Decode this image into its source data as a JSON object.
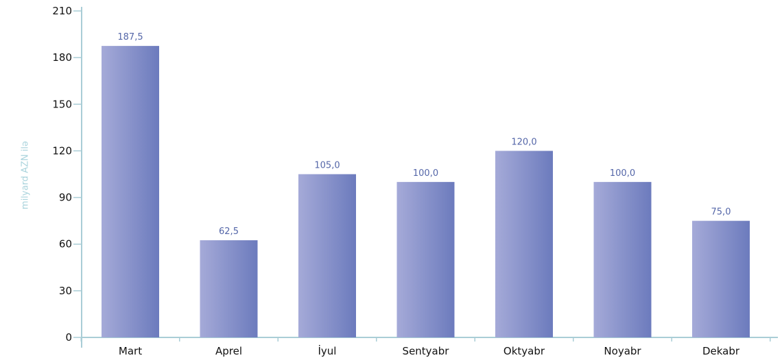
{
  "colors": {
    "axis": "#a9cdd6",
    "bar_light": "#a5aad8",
    "bar_dark": "#6c7bbd",
    "value_label": "#5466a8",
    "tick_text": "#111111",
    "ylabel_text": "#a9d3dc"
  },
  "chart_data": {
    "type": "bar",
    "title": "",
    "xlabel": "",
    "ylabel": "milyard AZN ilə",
    "categories": [
      "Mart",
      "Aprel",
      "İyul",
      "Sentyabr",
      "Oktyabr",
      "Noyabr",
      "Dekabr"
    ],
    "values": [
      187.5,
      62.5,
      105.0,
      100.0,
      120.0,
      100.0,
      75.0
    ],
    "value_labels": [
      "187,5",
      "62,5",
      "105,0",
      "100,0",
      "120,0",
      "100,0",
      "75,0"
    ],
    "ylim": [
      0,
      210
    ],
    "yticks": [
      0,
      30,
      60,
      90,
      120,
      150,
      180,
      210
    ],
    "grid": false,
    "legend": "none"
  }
}
